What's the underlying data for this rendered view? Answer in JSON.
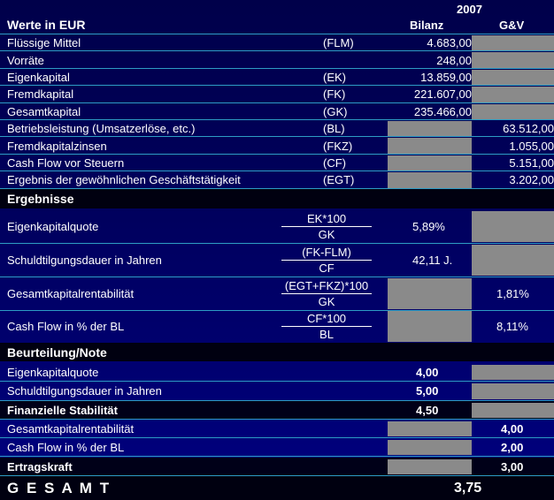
{
  "header": {
    "year": "2007",
    "title": "Werte in EUR",
    "col_bilanz": "Bilanz",
    "col_guv": "G&V"
  },
  "base_rows": [
    {
      "label": "Flüssige Mittel",
      "abbr": "(FLM)",
      "bilanz": "4.683,00",
      "guv": ""
    },
    {
      "label": "Vorräte",
      "abbr": "",
      "bilanz": "248,00",
      "guv": ""
    },
    {
      "label": "Eigenkapital",
      "abbr": "(EK)",
      "bilanz": "13.859,00",
      "guv": ""
    },
    {
      "label": "Fremdkapital",
      "abbr": "(FK)",
      "bilanz": "221.607,00",
      "guv": ""
    },
    {
      "label": "Gesamtkapital",
      "abbr": "(GK)",
      "bilanz": "235.466,00",
      "guv": ""
    },
    {
      "label": "Betriebsleistung (Umsatzerlöse, etc.)",
      "abbr": "(BL)",
      "bilanz": "",
      "guv": "63.512,00"
    },
    {
      "label": "Fremdkapitalzinsen",
      "abbr": "(FKZ)",
      "bilanz": "",
      "guv": "1.055,00"
    },
    {
      "label": "Cash Flow vor Steuern",
      "abbr": "(CF)",
      "bilanz": "",
      "guv": "5.151,00"
    },
    {
      "label": "Ergebnis der gewöhnlichen Geschäftstätigkeit",
      "abbr": "(EGT)",
      "bilanz": "",
      "guv": "3.202,00"
    }
  ],
  "ergebnisse": {
    "title": "Ergebnisse",
    "rows": [
      {
        "label": "Eigenkapitalquote",
        "num": "EK*100",
        "den": "GK",
        "bilanz": "5,89%",
        "guv": ""
      },
      {
        "label": "Schuldtilgungsdauer in Jahren",
        "num": "(FK-FLM)",
        "den": "CF",
        "bilanz": "42,11 J.",
        "guv": ""
      },
      {
        "label": "Gesamtkapitalrentabilität",
        "num": "(EGT+FKZ)*100",
        "den": "GK",
        "bilanz": "",
        "guv": "1,81%"
      },
      {
        "label": "Cash Flow in % der BL",
        "num": "CF*100",
        "den": "BL",
        "bilanz": "",
        "guv": "8,11%"
      }
    ]
  },
  "beurteilung": {
    "title": "Beurteilung/Note",
    "rows": [
      {
        "label": "Eigenkapitalquote",
        "bilanz": "4,00",
        "guv": ""
      },
      {
        "label": "Schuldtilgungsdauer in Jahren",
        "bilanz": "5,00",
        "guv": ""
      },
      {
        "label": "Finanzielle Stabilität",
        "bilanz": "4,50",
        "guv": ""
      },
      {
        "label": "Gesamtkapitalrentabilität",
        "bilanz": "",
        "guv": "4,00"
      },
      {
        "label": "Cash Flow in % der BL",
        "bilanz": "",
        "guv": "2,00"
      },
      {
        "label": "Ertragskraft",
        "bilanz": "",
        "guv": "3,00"
      }
    ]
  },
  "gesamt": {
    "label": "G E S A M T",
    "value": "3,75"
  }
}
